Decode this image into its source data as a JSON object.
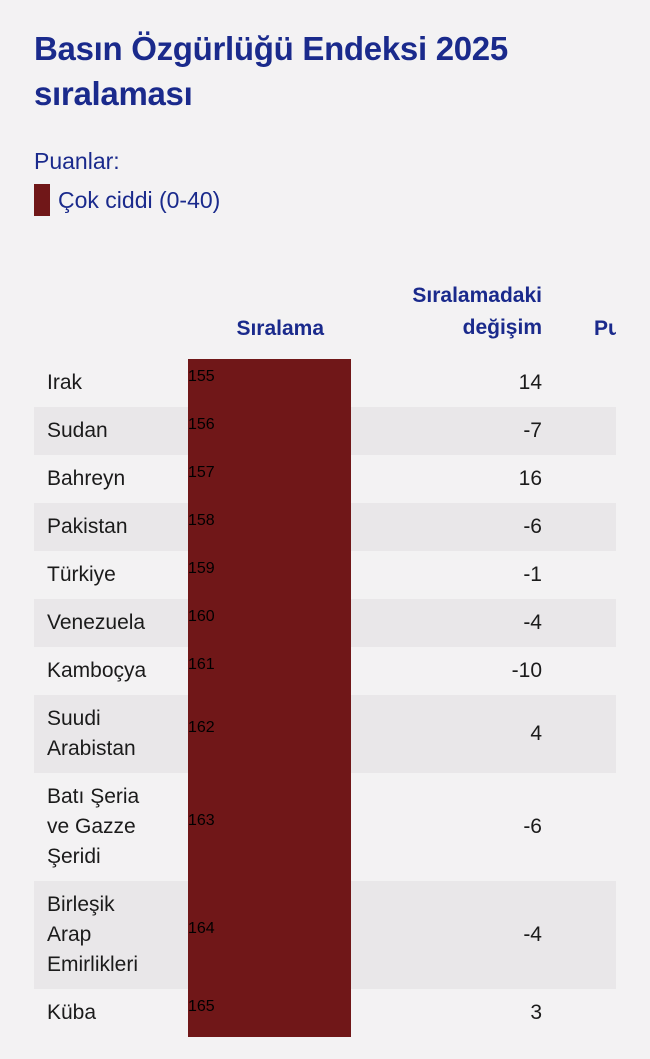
{
  "chart_data": {
    "type": "table",
    "title": "Basın Özgürlüğü Endeksi 2025 sıralaması",
    "legend": {
      "heading": "Puanlar:",
      "items": [
        {
          "label": "Çok ciddi (0-40)",
          "color": "#701718"
        }
      ]
    },
    "columns": [
      "Sıralama",
      "Sıralamadaki değişim",
      "Pu"
    ],
    "column_headers": {
      "rank": "Sıralama",
      "change_line1": "Sıralamadaki",
      "change_line2": "değişim",
      "score_cut": "Pu"
    },
    "rows": [
      {
        "country": "Irak",
        "rank": "155",
        "change": "14"
      },
      {
        "country": "Sudan",
        "rank": "156",
        "change": "-7"
      },
      {
        "country": "Bahreyn",
        "rank": "157",
        "change": "16"
      },
      {
        "country": "Pakistan",
        "rank": "158",
        "change": "-6"
      },
      {
        "country": "Türkiye",
        "rank": "159",
        "change": "-1"
      },
      {
        "country": "Venezuela",
        "rank": "160",
        "change": "-4"
      },
      {
        "country": "Kamboçya",
        "rank": "161",
        "change": "-10"
      },
      {
        "country": "Suudi\nArabistan",
        "rank": "162",
        "change": "4"
      },
      {
        "country": "Batı Şeria\nve Gazze\nŞeridi",
        "rank": "163",
        "change": "-6"
      },
      {
        "country": "Birleşik\nArap\nEmirlikleri",
        "rank": "164",
        "change": "-4"
      },
      {
        "country": "Küba",
        "rank": "165",
        "change": "3"
      }
    ]
  }
}
